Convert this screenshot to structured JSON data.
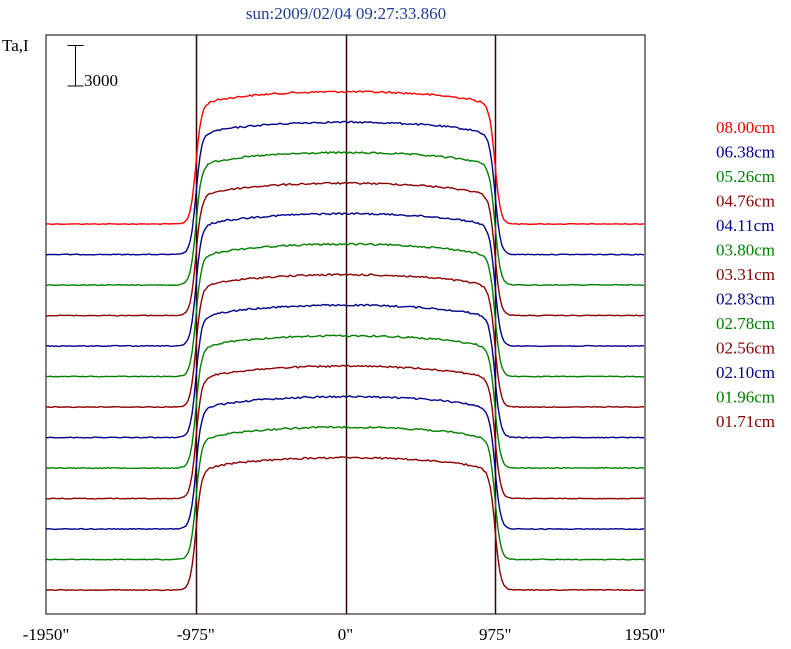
{
  "chart_data": {
    "type": "line",
    "title": "sun:2009/02/04 09:27:33.860",
    "ylabel": "Ta,I",
    "scale_bar": {
      "label": "3000",
      "value": 3000
    },
    "xlim": [
      -1950,
      1950
    ],
    "x_ticks": [
      {
        "value": -1950,
        "label": "-1950\""
      },
      {
        "value": -975,
        "label": "-975\""
      },
      {
        "value": 0,
        "label": "0\""
      },
      {
        "value": 975,
        "label": "975\""
      },
      {
        "value": 1950,
        "label": "1950\""
      }
    ],
    "vertical_lines": [
      -975,
      0,
      975
    ],
    "grid": false,
    "legend_position": "right",
    "series": [
      {
        "name": "08.00cm",
        "color": "#ff0000",
        "base": 0,
        "peak": 9800
      },
      {
        "name": "06.38cm",
        "color": "#00008b",
        "base": 0,
        "peak": 9800
      },
      {
        "name": "05.26cm",
        "color": "#008000",
        "base": 0,
        "peak": 9800
      },
      {
        "name": "04.76cm",
        "color": "#8b0000",
        "base": 0,
        "peak": 9800
      },
      {
        "name": "04.11cm",
        "color": "#00008b",
        "base": 0,
        "peak": 9800
      },
      {
        "name": "03.80cm",
        "color": "#008000",
        "base": 0,
        "peak": 9800
      },
      {
        "name": "03.31cm",
        "color": "#8b0000",
        "base": 0,
        "peak": 9800
      },
      {
        "name": "02.83cm",
        "color": "#00008b",
        "base": 0,
        "peak": 9800
      },
      {
        "name": "02.78cm",
        "color": "#008000",
        "base": 0,
        "peak": 9800
      },
      {
        "name": "02.56cm",
        "color": "#8b0000",
        "base": 0,
        "peak": 9800
      },
      {
        "name": "02.10cm",
        "color": "#00008b",
        "base": 0,
        "peak": 9800
      },
      {
        "name": "01.96cm",
        "color": "#008000",
        "base": 0,
        "peak": 9800
      },
      {
        "name": "01.71cm",
        "color": "#8b0000",
        "base": 0,
        "peak": 9800
      }
    ]
  }
}
